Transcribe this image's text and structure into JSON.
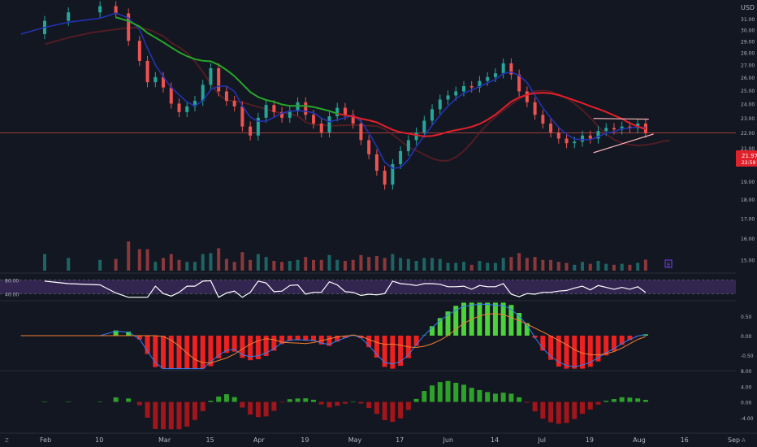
{
  "chart_data": {
    "type": "candlestick",
    "title": "",
    "currency_label": "USD",
    "colors": {
      "background": "#131722",
      "up": "#26a69a",
      "down": "#ef5350",
      "ma_fast": "#2434b8",
      "ma_slow_up": "#26a62a",
      "ma_slow_down": "#e0202a",
      "ma_shadow": "#6b1f22",
      "rsi_line": "#ffffff",
      "rsi_band": "#3b2a5c",
      "macd_hist_pos": "#4cd23a",
      "macd_hist_neg": "#ef2020",
      "macd_line": "#2f7ff5",
      "signal_line": "#f57f30",
      "osc_pos": "#2ea12a",
      "osc_neg": "#a1151b",
      "trend_lines": "#f6b1b5",
      "price_line": "#b5423f"
    },
    "price_axis": {
      "ticks": [
        "31.00",
        "30.00",
        "29.00",
        "28.00",
        "27.00",
        "26.00",
        "25.00",
        "24.00",
        "23.00",
        "22.00",
        "21.00",
        "20.00",
        "19.00",
        "18.00",
        "17.00",
        "16.00",
        "15.00"
      ],
      "range": [
        14.4,
        32.8
      ],
      "log_scale": true,
      "last_price": "21.97",
      "last_price_sub": "22:58"
    },
    "time_axis": {
      "labels": [
        "Feb",
        "10",
        "Mar",
        "15",
        "Apr",
        "19",
        "May",
        "17",
        "Jun",
        "14",
        "Jul",
        "19",
        "Aug",
        "16",
        "Sep"
      ],
      "label_positions": [
        0.5,
        4,
        8,
        11,
        14,
        17,
        20,
        23,
        26,
        29,
        32,
        35,
        38,
        41,
        44
      ]
    },
    "rsi": {
      "levels": [
        "80.00",
        "40.00"
      ],
      "range": [
        20,
        100
      ]
    },
    "macd": {
      "ticks": [
        "0.50",
        "0.00",
        "-0.50"
      ],
      "range": [
        -0.9,
        0.9
      ]
    },
    "oscillator": {
      "ticks": [
        "8.00",
        "4.00",
        "0.00",
        "-4.00"
      ],
      "range": [
        -8,
        8
      ]
    },
    "price_series": {
      "x_unit": "week index (Feb = 0.5)",
      "x": [
        -1,
        0.5,
        2,
        4,
        5,
        5.8,
        6.5,
        7,
        7.5,
        8,
        8.5,
        9,
        9.5,
        10,
        10.5,
        11,
        11.5,
        12,
        12.5,
        13,
        13.5,
        14,
        14.5,
        15,
        15.5,
        16,
        16.5,
        17,
        17.5,
        18,
        18.5,
        19,
        19.5,
        20,
        20.5,
        21,
        21.5,
        22,
        22.5,
        23,
        23.5,
        24,
        24.5,
        25,
        25.5,
        26,
        26.5,
        27,
        27.5,
        28,
        28.5,
        29,
        29.5,
        30,
        30.5,
        31,
        31.5,
        32,
        32.5,
        33,
        33.5,
        34,
        34.5,
        35,
        35.5,
        36,
        36.5,
        37,
        37.5,
        38,
        38.5
      ],
      "close": [
        29.6,
        30.8,
        31.6,
        32.2,
        31.5,
        29.0,
        27.3,
        25.6,
        26.0,
        25.2,
        24.0,
        23.4,
        23.8,
        24.2,
        25.4,
        26.7,
        24.9,
        24.2,
        23.8,
        22.4,
        21.8,
        23.0,
        23.9,
        23.4,
        23.0,
        23.5,
        24.1,
        23.2,
        22.6,
        22.0,
        23.1,
        23.7,
        23.2,
        22.6,
        21.5,
        20.6,
        19.6,
        18.8,
        20.0,
        20.8,
        21.5,
        22.0,
        22.8,
        23.6,
        24.3,
        24.6,
        24.9,
        25.3,
        25.2,
        25.7,
        26.0,
        26.3,
        27.1,
        26.2,
        24.9,
        24.1,
        23.2,
        22.6,
        22.0,
        21.6,
        21.3,
        21.4,
        21.8,
        21.6,
        22.1,
        22.3,
        22.2,
        22.4,
        22.3,
        22.6,
        21.97
      ]
    }
  }
}
